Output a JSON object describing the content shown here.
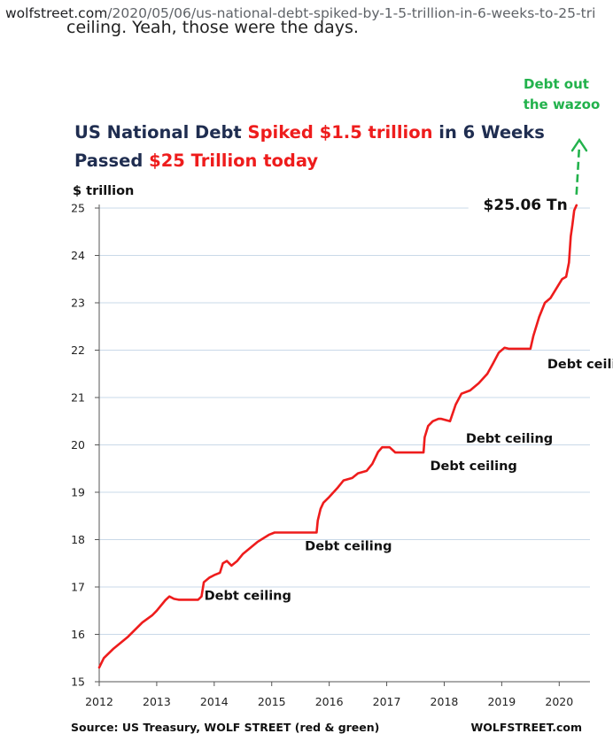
{
  "browser": {
    "url_host": "wolfstreet.com",
    "url_path": "/2020/05/06/us-national-debt-spiked-by-1-5-trillion-in-6-weeks-to-25-tri"
  },
  "article": {
    "clipped_line": "ceiling. Yeah, those were the days."
  },
  "chart_data": {
    "type": "line",
    "title_parts": [
      {
        "text": "US National Debt ",
        "color": "#1f2d50"
      },
      {
        "text": "Spiked $1.5 trillion",
        "color": "#ee1c1c"
      },
      {
        "text": " in 6 Weeks",
        "color": "#1f2d50"
      }
    ],
    "subtitle_parts": [
      {
        "text": "Passed ",
        "color": "#1f2d50"
      },
      {
        "text": "$25 Trillion today",
        "color": "#ee1c1c"
      }
    ],
    "ylabel": "$ trillion",
    "ylim": [
      15,
      25
    ],
    "yticks": [
      "15",
      "16",
      "17",
      "18",
      "19",
      "20",
      "21",
      "22",
      "23",
      "24",
      "25"
    ],
    "xlim": [
      2012,
      2020.35
    ],
    "xticks": [
      "2012",
      "2013",
      "2014",
      "2015",
      "2016",
      "2017",
      "2018",
      "2019",
      "2020"
    ],
    "grid": true,
    "line_color": "#ee1c1c",
    "projection_color": "#22b24c",
    "series": [
      {
        "x": [
          2012.0,
          2012.08,
          2012.25,
          2012.5,
          2012.75,
          2012.92,
          2013.0,
          2013.15,
          2013.22,
          2013.3,
          2013.38,
          2013.72,
          2013.78,
          2013.82,
          2013.92,
          2014.0,
          2014.1,
          2014.15,
          2014.22,
          2014.3,
          2014.4,
          2014.5,
          2014.75,
          2014.95,
          2015.05,
          2015.2,
          2015.78,
          2015.8,
          2015.85,
          2015.9,
          2016.0,
          2016.15,
          2016.25,
          2016.4,
          2016.5,
          2016.65,
          2016.75,
          2016.85,
          2016.92,
          2017.05,
          2017.15,
          2017.64,
          2017.66,
          2017.72,
          2017.8,
          2017.9,
          2017.95,
          2018.1,
          2018.2,
          2018.3,
          2018.45,
          2018.6,
          2018.75,
          2018.85,
          2018.95,
          2019.05,
          2019.12,
          2019.5,
          2019.55,
          2019.65,
          2019.75,
          2019.85,
          2019.95,
          2020.05,
          2020.12,
          2020.17,
          2020.2,
          2020.23,
          2020.26,
          2020.3
        ],
        "y": [
          15.3,
          15.5,
          15.7,
          15.95,
          16.25,
          16.4,
          16.5,
          16.72,
          16.8,
          16.75,
          16.73,
          16.73,
          16.8,
          17.1,
          17.2,
          17.25,
          17.3,
          17.5,
          17.55,
          17.45,
          17.55,
          17.7,
          17.95,
          18.1,
          18.15,
          18.15,
          18.15,
          18.4,
          18.65,
          18.78,
          18.9,
          19.1,
          19.25,
          19.3,
          19.4,
          19.45,
          19.6,
          19.85,
          19.95,
          19.95,
          19.84,
          19.84,
          20.16,
          20.4,
          20.5,
          20.55,
          20.55,
          20.5,
          20.85,
          21.08,
          21.15,
          21.3,
          21.5,
          21.72,
          21.95,
          22.05,
          22.03,
          22.03,
          22.3,
          22.7,
          23.0,
          23.1,
          23.3,
          23.5,
          23.55,
          23.85,
          24.4,
          24.65,
          24.95,
          25.06
        ]
      }
    ],
    "projection": {
      "x": [
        2020.3,
        2020.35
      ],
      "y": [
        25.06,
        26.4
      ]
    },
    "annotations": [
      {
        "text": "$25.06 Tn",
        "x": 2020.3,
        "y": 25.06
      },
      {
        "text": "Debt ceiling",
        "x": 2013.55,
        "y": 16.73
      },
      {
        "text": "Debt ceiling",
        "x": 2015.5,
        "y": 18.15
      },
      {
        "text": "Debt ceiling",
        "x": 2017.4,
        "y": 19.84
      },
      {
        "text": "Debt ceiling",
        "x": 2018.5,
        "y": 20.55
      },
      {
        "text": "Debt ceiling",
        "x": 2019.3,
        "y": 22.03
      }
    ],
    "projection_label": [
      "Debt out",
      "the wazoo"
    ],
    "source": "Source: US Treasury, WOLF STREET (red & green)",
    "brand": "WOLFSTREET.com"
  }
}
